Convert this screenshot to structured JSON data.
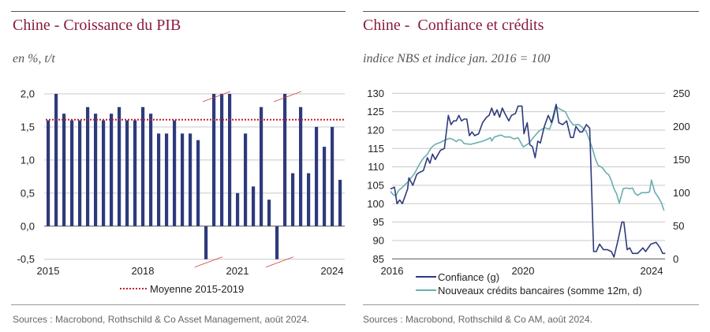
{
  "left": {
    "title": "Chine - Croissance du PIB",
    "subtitle": "en %, t/t",
    "source": "Sources : Macrobond, Rothschild & Co Asset Management, août 2024."
  },
  "right": {
    "title": "Chine -  Confiance et crédits",
    "subtitle": "indice NBS et indice jan. 2016 = 100",
    "source": "Sources : Macrobond, Rothschild & Co AM, août 2024."
  },
  "chart_data": [
    {
      "type": "bar",
      "title": "Chine - Croissance du PIB",
      "ylabel": "en %, t/t",
      "ylim": [
        -0.5,
        2.0
      ],
      "yticks": [
        "2,0",
        "1,5",
        "1,0",
        "0,5",
        "0,0",
        "-0,5"
      ],
      "ytick_values": [
        2.0,
        1.5,
        1.0,
        0.5,
        0.0,
        -0.5
      ],
      "xticks": [
        "2015",
        "2018",
        "2021",
        "2024"
      ],
      "grid": true,
      "bar_color": "#2e3a7c",
      "categories": [
        "2015T1",
        "2015T2",
        "2015T3",
        "2015T4",
        "2016T1",
        "2016T2",
        "2016T3",
        "2016T4",
        "2017T1",
        "2017T2",
        "2017T3",
        "2017T4",
        "2018T1",
        "2018T2",
        "2018T3",
        "2018T4",
        "2019T1",
        "2019T2",
        "2019T3",
        "2019T4",
        "2020T1",
        "2020T2",
        "2020T3",
        "2020T4",
        "2021T1",
        "2021T2",
        "2021T3",
        "2021T4",
        "2022T1",
        "2022T2",
        "2022T3",
        "2022T4",
        "2023T1",
        "2023T2",
        "2023T3",
        "2023T4",
        "2024T1",
        "2024T2"
      ],
      "values": [
        1.6,
        2.0,
        1.7,
        1.6,
        1.6,
        1.8,
        1.7,
        1.6,
        1.7,
        1.8,
        1.6,
        1.6,
        1.8,
        1.7,
        1.4,
        1.4,
        1.6,
        1.4,
        1.4,
        1.3,
        -0.5,
        2.0,
        2.0,
        2.0,
        0.5,
        1.4,
        0.6,
        1.8,
        0.4,
        -0.5,
        2.0,
        0.8,
        1.8,
        0.8,
        1.5,
        1.2,
        1.5,
        0.7
      ],
      "clipped_categories": [
        "2020T1",
        "2020T2",
        "2020T3",
        "2022T2",
        "2022T3"
      ],
      "reference_line": {
        "name": "Moyenne 2015-2019",
        "value": 1.61,
        "color": "#c0202a",
        "style": "dotted"
      },
      "legend": "bottom"
    },
    {
      "type": "line",
      "title": "Chine -  Confiance et crédits",
      "ylabel": "indice NBS et indice jan. 2016 = 100",
      "xlim": [
        2016,
        2024.4
      ],
      "xticks": [
        "2016",
        "2020",
        "2024"
      ],
      "ylim_left": [
        85,
        130
      ],
      "yticks_left": [
        "130",
        "125",
        "120",
        "115",
        "110",
        "105",
        "100",
        "95",
        "90",
        "85"
      ],
      "ylim_right": [
        0,
        250
      ],
      "yticks_right": [
        "250",
        "200",
        "150",
        "100",
        "50",
        "0"
      ],
      "grid": true,
      "legend": "bottom",
      "series": [
        {
          "name": "Confiance (g)",
          "axis": "left",
          "color": "#2e3a7c",
          "x": [
            2016.0,
            2016.12,
            2016.2,
            2016.28,
            2016.36,
            2016.52,
            2016.56,
            2016.68,
            2016.8,
            2016.88,
            2017.0,
            2017.12,
            2017.2,
            2017.28,
            2017.36,
            2017.52,
            2017.64,
            2017.76,
            2017.84,
            2017.92,
            2018.0,
            2018.08,
            2018.16,
            2018.24,
            2018.32,
            2018.4,
            2018.48,
            2018.56,
            2018.68,
            2018.8,
            2018.92,
            2019.0,
            2019.08,
            2019.16,
            2019.24,
            2019.32,
            2019.4,
            2019.48,
            2019.6,
            2019.68,
            2019.8,
            2019.88,
            2020.0,
            2020.06,
            2020.16,
            2020.24,
            2020.32,
            2020.4,
            2020.48,
            2020.56,
            2020.68,
            2020.8,
            2020.9,
            2021.04,
            2021.12,
            2021.24,
            2021.36,
            2021.48,
            2021.56,
            2021.64,
            2021.76,
            2021.84,
            2021.96,
            2022.06,
            2022.18,
            2022.26,
            2022.36,
            2022.48,
            2022.6,
            2022.72,
            2022.8,
            2022.92,
            2023.04,
            2023.1,
            2023.2,
            2023.28,
            2023.36,
            2023.52,
            2023.68,
            2023.76,
            2023.92,
            2024.08,
            2024.2,
            2024.28,
            2024.36
          ],
          "y": [
            104,
            104.5,
            100,
            101,
            100,
            104,
            107,
            105,
            108,
            108.5,
            109,
            112.5,
            111,
            113.5,
            112,
            114.5,
            115,
            124,
            121.5,
            122.5,
            122.5,
            124,
            122.5,
            123,
            123,
            118.5,
            119.5,
            118.5,
            119,
            122,
            123.5,
            124,
            126,
            124,
            125.5,
            123.5,
            126,
            124.5,
            122.5,
            124,
            124.5,
            126.5,
            126.5,
            119,
            122,
            116,
            115.5,
            112.5,
            117,
            116.5,
            121,
            124,
            122,
            127,
            122,
            121.5,
            122.5,
            118,
            118,
            121,
            119.5,
            119.5,
            121.5,
            120.5,
            87,
            87,
            89,
            87.5,
            87.5,
            87,
            85.5,
            90,
            95,
            95,
            87.5,
            88,
            86.5,
            86.5,
            88,
            87,
            89,
            89.5,
            88,
            86.5,
            86.5
          ]
        },
        {
          "name": "Nouveaux crédits bancaires (somme 12m, d)",
          "axis": "right",
          "color": "#6aaeb0",
          "x": [
            2016.0,
            2016.08,
            2016.16,
            2016.24,
            2016.36,
            2016.52,
            2016.72,
            2016.88,
            2017.0,
            2017.12,
            2017.24,
            2017.36,
            2017.52,
            2017.64,
            2017.8,
            2017.92,
            2018.0,
            2018.08,
            2018.16,
            2018.24,
            2018.44,
            2018.6,
            2018.76,
            2018.92,
            2019.04,
            2019.08,
            2019.16,
            2019.36,
            2019.48,
            2019.64,
            2019.76,
            2019.88,
            2020.04,
            2020.2,
            2020.36,
            2020.52,
            2020.68,
            2020.84,
            2020.96,
            2021.04,
            2021.16,
            2021.32,
            2021.44,
            2021.56,
            2021.72,
            2021.8,
            2021.88,
            2021.96,
            2022.12,
            2022.24,
            2022.32,
            2022.44,
            2022.56,
            2022.64,
            2022.72,
            2022.8,
            2022.88,
            2022.96,
            2023.08,
            2023.16,
            2023.28,
            2023.36,
            2023.44,
            2023.52,
            2023.64,
            2023.8,
            2023.88,
            2023.94,
            2024.04,
            2024.16,
            2024.24,
            2024.32
          ],
          "y": [
            102,
            97,
            95,
            103,
            108,
            116,
            128,
            143,
            152,
            158,
            168,
            173,
            176,
            179,
            182,
            180,
            177,
            180,
            179,
            174,
            173,
            175,
            177,
            180,
            183,
            178,
            184,
            187,
            184,
            184,
            181,
            183,
            169,
            174,
            184,
            193,
            198,
            196,
            212,
            230,
            226,
            222,
            210,
            202,
            203,
            200,
            196,
            192,
            170,
            150,
            141,
            138,
            130,
            127,
            118,
            106,
            98,
            84,
            106,
            107,
            106,
            107,
            99,
            96,
            100,
            100,
            101,
            119,
            101,
            92,
            85,
            73
          ]
        }
      ]
    }
  ]
}
